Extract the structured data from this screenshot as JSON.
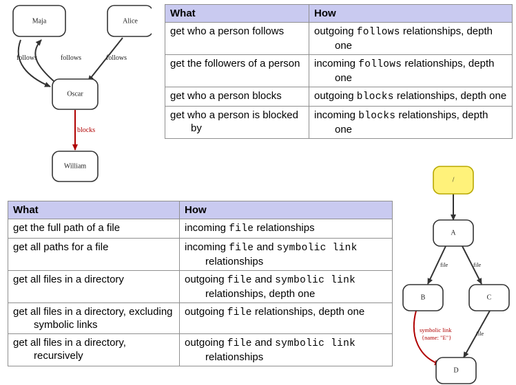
{
  "social_graph": {
    "nodes": {
      "maja": "Maja",
      "alice": "Alice",
      "oscar": "Oscar",
      "william": "William"
    },
    "edges": {
      "follows_1": "follows",
      "follows_2": "follows",
      "follows_3": "follows",
      "blocks": "blocks"
    }
  },
  "social_table": {
    "headers": [
      "What",
      "How"
    ],
    "rows": [
      {
        "what": "get who a person follows",
        "how_pre": "outgoing ",
        "how_code": "follows",
        "how_post": " relationships, depth one"
      },
      {
        "what": "get the followers of a person",
        "how_pre": "incoming ",
        "how_code": "follows",
        "how_post": " relationships, depth one"
      },
      {
        "what": "get who a person blocks",
        "how_pre": "outgoing ",
        "how_code": "blocks",
        "how_post": " relationships, depth one"
      },
      {
        "what": "get who a person is blocked by",
        "how_pre": "incoming ",
        "how_code": "blocks",
        "how_post": " relationships, depth one"
      }
    ]
  },
  "file_table": {
    "headers": [
      "What",
      "How"
    ],
    "rows": [
      {
        "what": "get the full path of a file",
        "how_pre": "incoming ",
        "how_code": "file",
        "how_mid": "",
        "how_code2": "",
        "how_post": " relationships"
      },
      {
        "what": "get all paths for a file",
        "how_pre": "incoming ",
        "how_code": "file",
        "how_mid": " and ",
        "how_code2": "symbolic link",
        "how_post": " relationships"
      },
      {
        "what": "get all files in a directory",
        "how_pre": "outgoing ",
        "how_code": "file",
        "how_mid": " and ",
        "how_code2": "symbolic link",
        "how_post": " relationships, depth one"
      },
      {
        "what": "get all files in a directory, excluding symbolic links",
        "how_pre": "outgoing ",
        "how_code": "file",
        "how_mid": "",
        "how_code2": "",
        "how_post": " relationships, depth one"
      },
      {
        "what": "get all files in a directory, recursively",
        "how_pre": "outgoing ",
        "how_code": "file",
        "how_mid": " and ",
        "how_code2": "symbolic link",
        "how_post": " relationships"
      }
    ]
  },
  "file_graph": {
    "nodes": {
      "root": "/",
      "a": "A",
      "b": "B",
      "c": "C",
      "d": "D"
    },
    "edges": {
      "file_ab": "file",
      "file_ac": "file",
      "file_cd": "file",
      "symlink_line1": "symbolic link",
      "symlink_line2": "{name: \"E\"}"
    },
    "colors": {
      "root_fill": "#fff27a",
      "root_stroke": "#b8a800",
      "symlink": "#b00000"
    }
  }
}
